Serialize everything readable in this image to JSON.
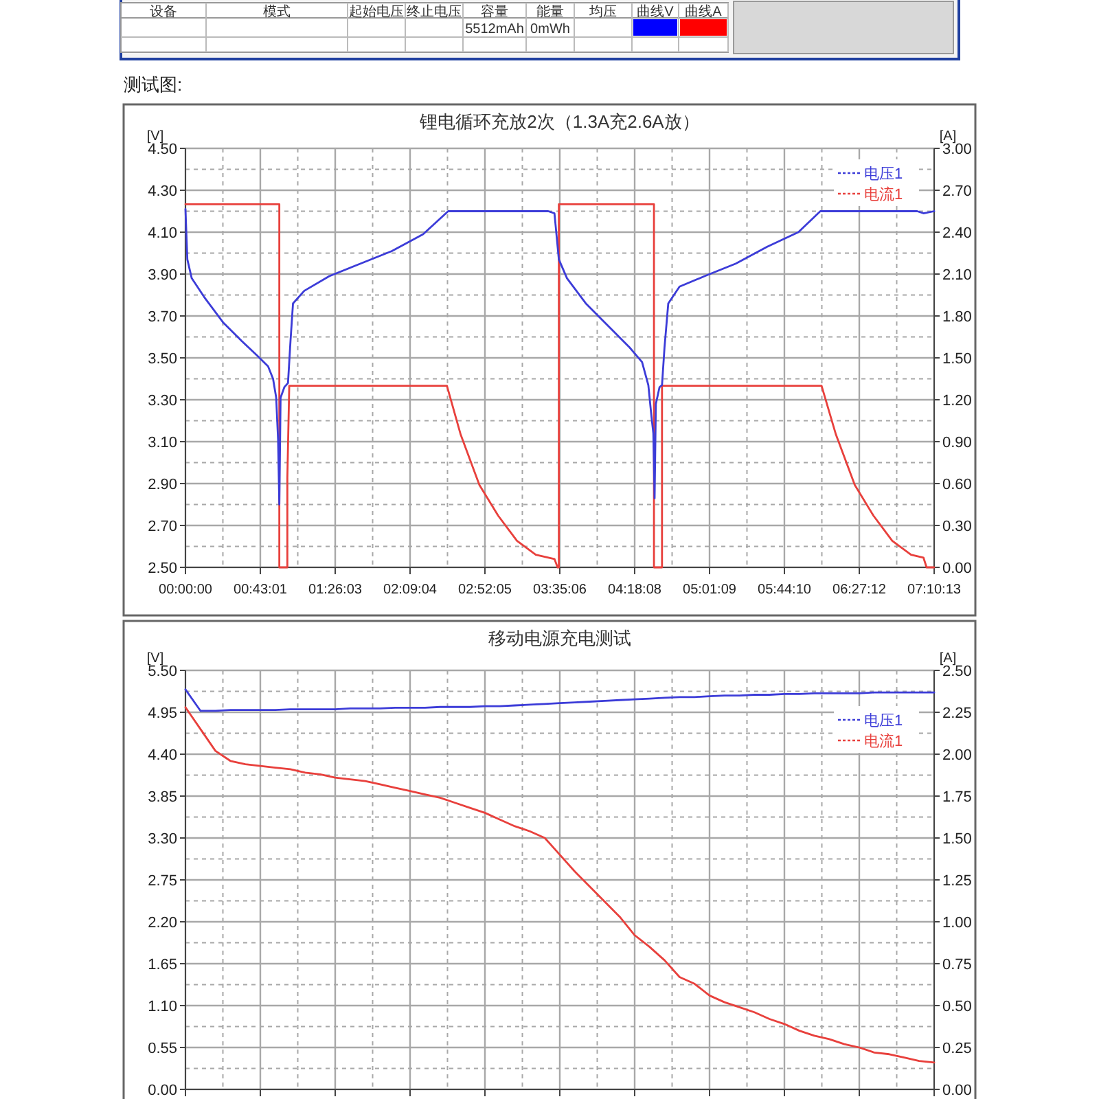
{
  "chart_data": [
    {
      "type": "other",
      "categories": [
        "设备",
        "模式",
        "起始电压",
        "终止电压",
        "容量",
        "能量",
        "均压",
        "曲线V",
        "曲线A"
      ],
      "value_labels": [
        null,
        null,
        null,
        null,
        "5512mAh",
        "0mWh",
        null,
        null,
        null
      ],
      "colors": [
        null,
        null,
        null,
        null,
        null,
        null,
        null,
        "#0000ff",
        "#ff0000"
      ],
      "annotations": [
        "测试图:"
      ]
    },
    {
      "type": "line",
      "title": "锂电循环充放2次（1.3A充2.6A放）",
      "ylabel": "[V]",
      "y2label": "[A]",
      "xlim": [
        0,
        7.1703
      ],
      "xticks": [
        {
          "value": 0,
          "label": "00:00:00"
        },
        {
          "value": 0.7169,
          "label": "00:43:01"
        },
        {
          "value": 1.4342,
          "label": "01:26:03"
        },
        {
          "value": 2.1511,
          "label": "02:09:04"
        },
        {
          "value": 2.868,
          "label": "02:52:05"
        },
        {
          "value": 3.585,
          "label": "03:35:06"
        },
        {
          "value": 4.3022,
          "label": "04:18:08"
        },
        {
          "value": 5.0192,
          "label": "05:01:09"
        },
        {
          "value": 5.7361,
          "label": "05:44:10"
        },
        {
          "value": 6.4533,
          "label": "06:27:12"
        },
        {
          "value": 7.1703,
          "label": "07:10:13"
        }
      ],
      "ylim": [
        2.5,
        4.5
      ],
      "yticks": [
        {
          "value": 2.5,
          "label": "2.50"
        },
        {
          "value": 2.7,
          "label": "2.70"
        },
        {
          "value": 2.9,
          "label": "2.90"
        },
        {
          "value": 3.1,
          "label": "3.10"
        },
        {
          "value": 3.3,
          "label": "3.30"
        },
        {
          "value": 3.5,
          "label": "3.50"
        },
        {
          "value": 3.7,
          "label": "3.70"
        },
        {
          "value": 3.9,
          "label": "3.90"
        },
        {
          "value": 4.1,
          "label": "4.10"
        },
        {
          "value": 4.3,
          "label": "4.30"
        },
        {
          "value": 4.5,
          "label": "4.50"
        }
      ],
      "y2lim": [
        0,
        3
      ],
      "y2ticks": [
        {
          "value": 0,
          "label": "0.00"
        },
        {
          "value": 0.3,
          "label": "0.30"
        },
        {
          "value": 0.6,
          "label": "0.60"
        },
        {
          "value": 0.9,
          "label": "0.90"
        },
        {
          "value": 1.2,
          "label": "1.20"
        },
        {
          "value": 1.5,
          "label": "1.50"
        },
        {
          "value": 1.8,
          "label": "1.80"
        },
        {
          "value": 2.1,
          "label": "2.10"
        },
        {
          "value": 2.4,
          "label": "2.40"
        },
        {
          "value": 2.7,
          "label": "2.70"
        },
        {
          "value": 3,
          "label": "3.00"
        }
      ],
      "grid": true,
      "legend": "top right",
      "series": [
        {
          "name": "电压1",
          "color": "#3c3cd8",
          "x": [
            0,
            0.018,
            0.06,
            0.18,
            0.359,
            0.539,
            0.689,
            0.791,
            0.839,
            0.869,
            0.887,
            0.899,
            0.911,
            0.947,
            0.982,
            1.006,
            1.03,
            1.138,
            1.378,
            1.677,
            1.977,
            2.276,
            2.516,
            2.995,
            3.474,
            3.534,
            3.576,
            3.654,
            3.834,
            4.073,
            4.253,
            4.373,
            4.433,
            4.463,
            4.481,
            4.493,
            4.505,
            4.54,
            4.564,
            4.588,
            4.624,
            4.732,
            4.972,
            5.271,
            5.571,
            5.87,
            6.08,
            6.589,
            7.008,
            7.068,
            7.17
          ],
          "values": [
            4.21,
            3.97,
            3.88,
            3.79,
            3.67,
            3.58,
            3.51,
            3.46,
            3.4,
            3.31,
            3.11,
            2.8,
            3.31,
            3.36,
            3.38,
            3.58,
            3.76,
            3.82,
            3.89,
            3.95,
            4.01,
            4.09,
            4.2,
            4.2,
            4.2,
            4.19,
            3.97,
            3.88,
            3.76,
            3.64,
            3.55,
            3.48,
            3.37,
            3.22,
            3.14,
            2.83,
            3.28,
            3.36,
            3.37,
            3.55,
            3.76,
            3.84,
            3.89,
            3.95,
            4.03,
            4.1,
            4.2,
            4.2,
            4.2,
            4.19,
            4.2
          ]
        },
        {
          "name": "电流1",
          "color": "#e8403c",
          "axis": "y2",
          "x": [
            0,
            0.899,
            0.899,
            0.976,
            0.976,
            0.994,
            2.504,
            2.636,
            2.815,
            2.995,
            3.175,
            3.355,
            3.534,
            3.564,
            3.576,
            3.576,
            4.487,
            4.487,
            4.564,
            4.564,
            6.092,
            6.23,
            6.41,
            6.589,
            6.769,
            6.949,
            7.068,
            7.098,
            7.17
          ],
          "values": [
            2.6,
            2.6,
            0,
            0,
            0.64,
            1.3,
            1.3,
            0.95,
            0.59,
            0.37,
            0.19,
            0.09,
            0.06,
            0,
            0,
            2.6,
            2.6,
            0,
            0,
            1.3,
            1.3,
            0.95,
            0.59,
            0.37,
            0.19,
            0.09,
            0.07,
            0,
            0
          ]
        }
      ]
    },
    {
      "type": "line",
      "title": "移动电源充电测试",
      "ylabel": "[V]",
      "y2label": "[A]",
      "categories": [
        null,
        null,
        null,
        null,
        null,
        null,
        null,
        null,
        null,
        null,
        null,
        null,
        null,
        null,
        null,
        null,
        null,
        null,
        null,
        null,
        null,
        null,
        null,
        null,
        null,
        null,
        null,
        null,
        null,
        null,
        null,
        null,
        null,
        null,
        null,
        null,
        null,
        null,
        null,
        null,
        null,
        null,
        null,
        null,
        null,
        null,
        null,
        null,
        null,
        null,
        null
      ],
      "ylim": [
        0,
        5.5
      ],
      "yticks": [
        {
          "value": 0,
          "label": "0.00"
        },
        {
          "value": 0.55,
          "label": "0.55"
        },
        {
          "value": 1.1,
          "label": "1.10"
        },
        {
          "value": 1.65,
          "label": "1.65"
        },
        {
          "value": 2.2,
          "label": "2.20"
        },
        {
          "value": 2.75,
          "label": "2.75"
        },
        {
          "value": 3.3,
          "label": "3.30"
        },
        {
          "value": 3.85,
          "label": "3.85"
        },
        {
          "value": 4.4,
          "label": "4.40"
        },
        {
          "value": 4.95,
          "label": "4.95"
        },
        {
          "value": 5.5,
          "label": "5.50"
        }
      ],
      "y2lim": [
        0,
        2.5
      ],
      "y2ticks": [
        {
          "value": 0,
          "label": "0.00"
        },
        {
          "value": 0.25,
          "label": "0.25"
        },
        {
          "value": 0.5,
          "label": "0.50"
        },
        {
          "value": 0.75,
          "label": "0.75"
        },
        {
          "value": 1,
          "label": "1.00"
        },
        {
          "value": 1.25,
          "label": "1.25"
        },
        {
          "value": 1.5,
          "label": "1.50"
        },
        {
          "value": 1.75,
          "label": "1.75"
        },
        {
          "value": 2,
          "label": "2.00"
        },
        {
          "value": 2.25,
          "label": "2.25"
        },
        {
          "value": 2.5,
          "label": "2.50"
        }
      ],
      "grid": true,
      "legend": "top right",
      "series": [
        {
          "name": "电压1",
          "color": "#3c3cd8",
          "values": [
            5.25,
            4.97,
            4.97,
            4.98,
            4.98,
            4.98,
            4.98,
            4.99,
            4.99,
            4.99,
            4.99,
            5.0,
            5.0,
            5.0,
            5.01,
            5.01,
            5.01,
            5.02,
            5.02,
            5.02,
            5.03,
            5.03,
            5.04,
            5.05,
            5.06,
            5.07,
            5.08,
            5.09,
            5.1,
            5.11,
            5.12,
            5.13,
            5.14,
            5.15,
            5.15,
            5.16,
            5.17,
            5.17,
            5.18,
            5.18,
            5.19,
            5.19,
            5.2,
            5.2,
            5.2,
            5.2,
            5.21,
            5.21,
            5.21,
            5.21,
            5.21
          ]
        },
        {
          "name": "电流1",
          "color": "#e8403c",
          "axis": "y2",
          "values": [
            2.28,
            2.15,
            2.02,
            1.96,
            1.94,
            1.93,
            1.92,
            1.91,
            1.89,
            1.88,
            1.86,
            1.85,
            1.84,
            1.82,
            1.8,
            1.78,
            1.76,
            1.74,
            1.71,
            1.68,
            1.65,
            1.61,
            1.57,
            1.54,
            1.5,
            1.4,
            1.3,
            1.21,
            1.12,
            1.03,
            0.92,
            0.85,
            0.77,
            0.67,
            0.63,
            0.56,
            0.52,
            0.49,
            0.46,
            0.42,
            0.39,
            0.35,
            0.32,
            0.3,
            0.27,
            0.25,
            0.22,
            0.21,
            0.19,
            0.17,
            0.16
          ]
        }
      ]
    }
  ]
}
